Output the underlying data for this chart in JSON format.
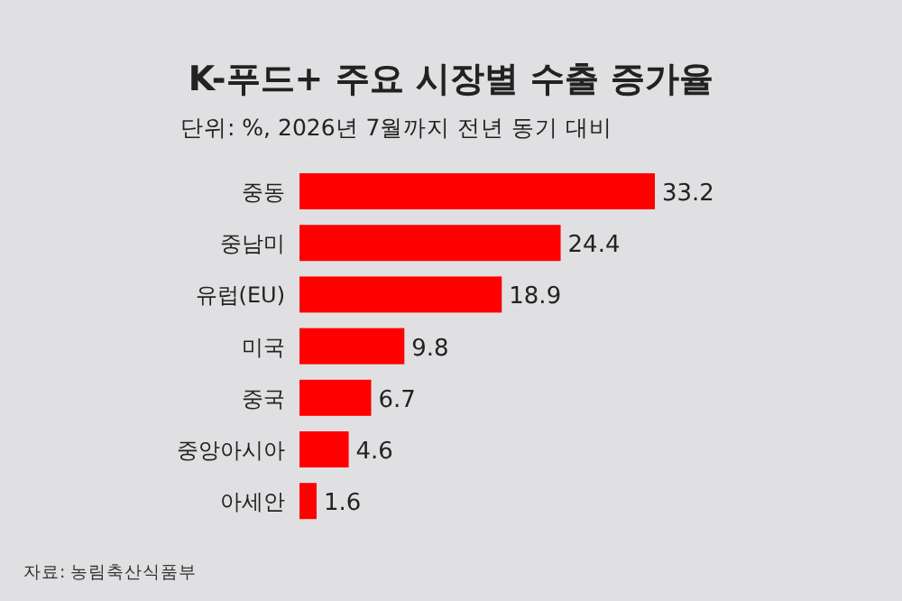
{
  "chart_data": {
    "type": "bar",
    "orientation": "horizontal",
    "title": "K-푸드+ 주요 시장별 수출 증가율",
    "subtitle": "단위: %, 2026년 7월까지 전년 동기 대비",
    "categories": [
      "중동",
      "중남미",
      "유럽(EU)",
      "미국",
      "중국",
      "중앙아시아",
      "아세안"
    ],
    "values": [
      33.2,
      24.4,
      18.9,
      9.8,
      6.7,
      4.6,
      1.6
    ],
    "color": "#ff0000",
    "data_labels": true,
    "annotations": [
      "자료: 농림축산식품부"
    ]
  }
}
